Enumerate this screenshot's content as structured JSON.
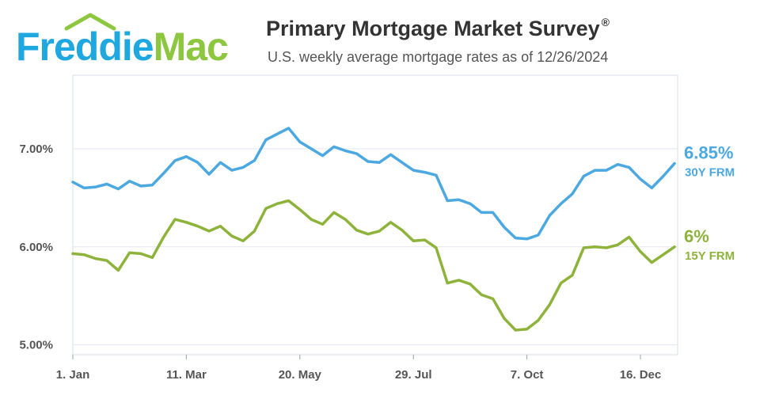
{
  "brand": {
    "name_part1": "Freddie",
    "name_part2": "Mac",
    "color_blue": "#1fa8e0",
    "color_green": "#8dc63f"
  },
  "title": "Primary Mortgage Market Survey",
  "title_mark": "®",
  "subtitle": "U.S. weekly average mortgage rates as of 12/26/2024",
  "chart_data": {
    "type": "line",
    "ylim": [
      4.9,
      7.75
    ],
    "y_ticks": [
      {
        "value": 5.0,
        "label": "5.00%"
      },
      {
        "value": 6.0,
        "label": "6.00%"
      },
      {
        "value": 7.0,
        "label": "7.00%"
      }
    ],
    "x_tick_labels": [
      {
        "week_index": 0,
        "label": "1. Jan"
      },
      {
        "week_index": 10,
        "label": "11. Mar"
      },
      {
        "week_index": 20,
        "label": "20. May"
      },
      {
        "week_index": 30,
        "label": "29. Jul"
      },
      {
        "week_index": 40,
        "label": "7. Oct"
      },
      {
        "week_index": 50,
        "label": "16. Dec"
      }
    ],
    "grid": true,
    "series": [
      {
        "name": "30Y FRM",
        "color": "#4ba8e0",
        "end_label": "6.85%",
        "values": [
          6.66,
          6.6,
          6.61,
          6.64,
          6.59,
          6.67,
          6.62,
          6.63,
          6.75,
          6.88,
          6.92,
          6.86,
          6.74,
          6.86,
          6.78,
          6.81,
          6.88,
          7.09,
          7.15,
          7.21,
          7.07,
          7.0,
          6.93,
          7.02,
          6.98,
          6.95,
          6.87,
          6.86,
          6.94,
          6.86,
          6.78,
          6.76,
          6.73,
          6.47,
          6.48,
          6.44,
          6.35,
          6.35,
          6.2,
          6.09,
          6.08,
          6.12,
          6.32,
          6.44,
          6.54,
          6.72,
          6.78,
          6.78,
          6.84,
          6.81,
          6.69,
          6.6,
          6.72,
          6.85
        ]
      },
      {
        "name": "15Y FRM",
        "color": "#8db33b",
        "end_label": "6%",
        "values": [
          5.93,
          5.92,
          5.88,
          5.86,
          5.76,
          5.94,
          5.93,
          5.89,
          6.1,
          6.28,
          6.25,
          6.21,
          6.16,
          6.21,
          6.11,
          6.06,
          6.16,
          6.39,
          6.44,
          6.47,
          6.38,
          6.28,
          6.23,
          6.35,
          6.28,
          6.17,
          6.13,
          6.16,
          6.25,
          6.17,
          6.06,
          6.07,
          5.99,
          5.63,
          5.66,
          5.62,
          5.51,
          5.47,
          5.27,
          5.15,
          5.16,
          5.25,
          5.41,
          5.63,
          5.71,
          5.99,
          6.0,
          5.99,
          6.02,
          6.1,
          5.95,
          5.84,
          5.92,
          6.0
        ]
      }
    ]
  }
}
